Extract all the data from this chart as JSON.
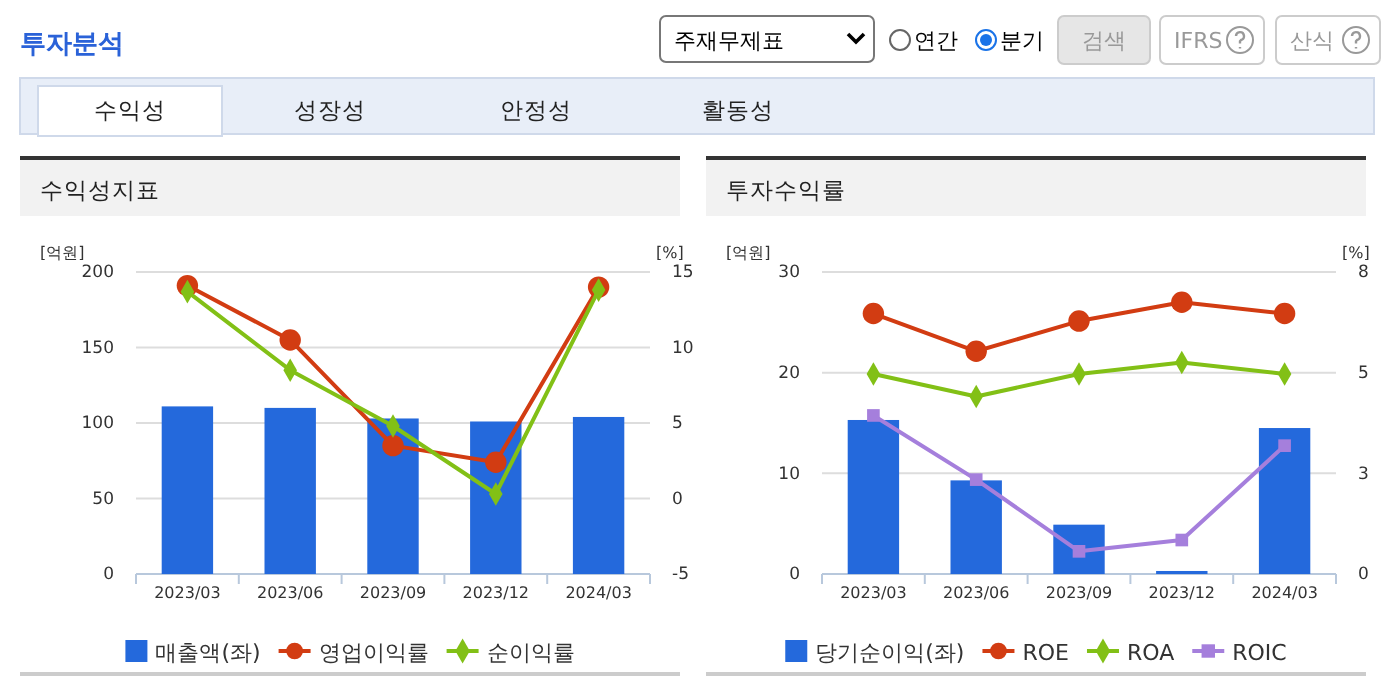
{
  "chart_data": [
    {
      "type": "other",
      "title": "투자분석",
      "annotations": [
        "주재무제표",
        "연간",
        "분기",
        "검색",
        "IFRS",
        "산식",
        "수익성",
        "성장성",
        "안정성",
        "활동성"
      ]
    },
    {
      "type": "bar",
      "title": "수익성지표",
      "ylabel": "[억원]",
      "y2label": "[%]",
      "categories": [
        "2023/03",
        "2023/06",
        "2023/09",
        "2023/12",
        "2024/03"
      ],
      "ylim": [
        0,
        200
      ],
      "yticks": [
        0,
        50,
        100,
        150,
        200
      ],
      "y2lim": [
        -5,
        15
      ],
      "y2ticks": [
        -5,
        0,
        5,
        10,
        15
      ],
      "grid": "y",
      "legend": "bottom",
      "series": [
        {
          "name": "매출액(좌)",
          "type": "bar",
          "color": "#2469dc",
          "values": [
            111,
            110,
            103,
            101,
            104
          ]
        },
        {
          "name": "영업이익률",
          "type": "line",
          "axis": "y2",
          "marker": "circle",
          "color": "#d23c12",
          "values": [
            14.1,
            10.5,
            3.5,
            2.4,
            14.0
          ]
        },
        {
          "name": "순이익률",
          "type": "line",
          "axis": "y2",
          "marker": "diamond",
          "color": "#82c016",
          "values": [
            13.7,
            8.5,
            4.8,
            0.3,
            13.8
          ]
        }
      ]
    },
    {
      "type": "bar",
      "title": "투자수익률",
      "ylabel": "[억원]",
      "y2label": "[%]",
      "categories": [
        "2023/03",
        "2023/06",
        "2023/09",
        "2023/12",
        "2024/03"
      ],
      "ylim": [
        0,
        30
      ],
      "yticks": [
        0,
        10,
        20,
        30
      ],
      "y2lim": [
        0,
        8
      ],
      "y2ticks": [
        0,
        {
          "value": 2.667,
          "label": "3"
        },
        {
          "value": 5.333,
          "label": "5"
        },
        8
      ],
      "grid": "y",
      "legend": "bottom",
      "series": [
        {
          "name": "당기순이익(좌)",
          "type": "bar",
          "color": "#2469dc",
          "values": [
            15.3,
            9.3,
            4.9,
            0.3,
            14.5
          ]
        },
        {
          "name": "ROE",
          "type": "line",
          "axis": "y2",
          "marker": "circle",
          "color": "#d23c12",
          "values": [
            6.9,
            5.9,
            6.7,
            7.2,
            6.9
          ]
        },
        {
          "name": "ROA",
          "type": "line",
          "axis": "y2",
          "marker": "diamond",
          "color": "#82c016",
          "values": [
            5.3,
            4.7,
            5.3,
            5.6,
            5.3
          ]
        },
        {
          "name": "ROIC",
          "type": "line",
          "axis": "y2",
          "marker": "square",
          "color": "#a57fdc",
          "values": [
            4.2,
            2.5,
            0.6,
            0.9,
            3.4
          ]
        }
      ]
    }
  ]
}
